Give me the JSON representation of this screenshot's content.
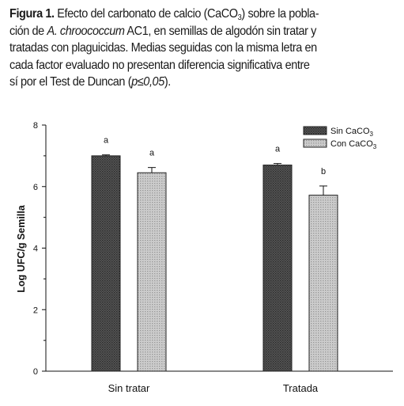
{
  "caption": {
    "figure_label": "Figura 1.",
    "part1": " Efecto del carbonato de calcio (CaCO",
    "sub3": "3",
    "part2": ") sobre la pobla-",
    "part3": "ción de ",
    "species": "A. chroococcum",
    "part4": " AC1, en semillas de algodón sin tratar y",
    "part5": "tratadas con plaguicidas. Medias seguidas con la misma letra en",
    "part6": "cada factor evaluado no presentan diferencia significativa entre",
    "part7": "sí por el Test de Duncan (",
    "stat": "p",
    "part8": "≤",
    "pval": "0,05",
    "part9": ")."
  },
  "chart_data": {
    "type": "bar",
    "categories": [
      "Sin tratar",
      "Tratada"
    ],
    "series": [
      {
        "name": "Sin CaCO3",
        "values": [
          7.0,
          6.7
        ],
        "errors": [
          0.03,
          0.05
        ],
        "letters": [
          "a",
          "a"
        ],
        "pattern": "dark-dotted"
      },
      {
        "name": "Con CaCO3",
        "values": [
          6.45,
          5.72
        ],
        "errors": [
          0.17,
          0.3
        ],
        "letters": [
          "a",
          "b"
        ],
        "pattern": "light-dotted"
      }
    ],
    "ylabel": "Log UFC/g Semilla",
    "xlabel": "",
    "ylim": [
      0,
      8
    ],
    "yticks": [
      "0",
      "2",
      "4",
      "6",
      "8"
    ],
    "grid": false,
    "legend_placement": "top-right",
    "legend_labels": [
      {
        "base": "Sin CaCO",
        "sub": "3"
      },
      {
        "base": "Con CaCO",
        "sub": "3"
      }
    ],
    "colors": {
      "axis": "#111111",
      "bar_dark": "#4a4a4a",
      "bar_light": "#c8c8c8"
    }
  }
}
